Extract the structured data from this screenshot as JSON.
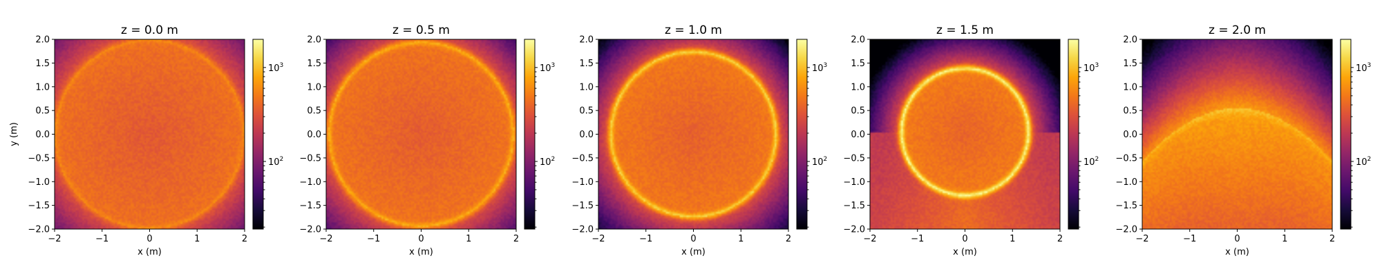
{
  "chart_data": [
    {
      "type": "heatmap",
      "title": "z = 0.0 m",
      "xlabel": "x (m)",
      "ylabel": "y (m)",
      "xlim": [
        -2,
        2
      ],
      "ylim": [
        -2,
        2
      ],
      "xticks": [
        -2,
        -1,
        0,
        1,
        2
      ],
      "yticks": [
        -2.0,
        -1.5,
        -1.0,
        -0.5,
        0.0,
        0.5,
        1.0,
        1.5,
        2.0
      ],
      "colormap": "inferno",
      "colorbar_scale": "log",
      "colorbar_ticks": [
        {
          "base": "10",
          "exp": "2",
          "value": 100
        },
        {
          "base": "10",
          "exp": "3",
          "value": 1000
        }
      ],
      "pattern": {
        "cx": 0.0,
        "cy": 0.0,
        "r": 2.0
      }
    },
    {
      "type": "heatmap",
      "title": "z = 0.5 m",
      "xlabel": "x (m)",
      "ylabel": "",
      "xlim": [
        -2,
        2
      ],
      "ylim": [
        -2,
        2
      ],
      "xticks": [
        -2,
        -1,
        0,
        1,
        2
      ],
      "yticks": [
        -2.0,
        -1.5,
        -1.0,
        -0.5,
        0.0,
        0.5,
        1.0,
        1.5,
        2.0
      ],
      "colormap": "inferno",
      "colorbar_scale": "log",
      "colorbar_ticks": [
        {
          "base": "10",
          "exp": "2",
          "value": 100
        },
        {
          "base": "10",
          "exp": "3",
          "value": 1000
        }
      ],
      "pattern": {
        "cx": 0.0,
        "cy": 0.0,
        "r": 1.95
      }
    },
    {
      "type": "heatmap",
      "title": "z = 1.0 m",
      "xlabel": "x (m)",
      "ylabel": "",
      "xlim": [
        -2,
        2
      ],
      "ylim": [
        -2,
        2
      ],
      "xticks": [
        -2,
        -1,
        0,
        1,
        2
      ],
      "yticks": [
        -2.0,
        -1.5,
        -1.0,
        -0.5,
        0.0,
        0.5,
        1.0,
        1.5,
        2.0
      ],
      "colormap": "inferno",
      "colorbar_scale": "log",
      "colorbar_ticks": [
        {
          "base": "10",
          "exp": "2",
          "value": 100
        },
        {
          "base": "10",
          "exp": "3",
          "value": 1000
        }
      ],
      "pattern": {
        "cx": 0.0,
        "cy": 0.0,
        "r": 1.75
      }
    },
    {
      "type": "heatmap",
      "title": "z = 1.5 m",
      "xlabel": "x (m)",
      "ylabel": "",
      "xlim": [
        -2,
        2
      ],
      "ylim": [
        -2,
        2
      ],
      "xticks": [
        -2,
        -1,
        0,
        1,
        2
      ],
      "yticks": [
        -2.0,
        -1.5,
        -1.0,
        -0.5,
        0.0,
        0.5,
        1.0,
        1.5,
        2.0
      ],
      "colormap": "inferno",
      "colorbar_scale": "log",
      "colorbar_ticks": [
        {
          "base": "10",
          "exp": "2",
          "value": 100
        },
        {
          "base": "10",
          "exp": "3",
          "value": 1000
        }
      ],
      "pattern": {
        "cx": 0.0,
        "cy": 0.05,
        "r": 1.35
      }
    },
    {
      "type": "heatmap",
      "title": "z = 2.0 m",
      "xlabel": "x (m)",
      "ylabel": "",
      "xlim": [
        -2,
        2
      ],
      "ylim": [
        -2,
        2
      ],
      "xticks": [
        -2,
        -1,
        0,
        1,
        2
      ],
      "yticks": [
        -2.0,
        -1.5,
        -1.0,
        -0.5,
        0.0,
        0.5,
        1.0,
        1.5,
        2.0
      ],
      "colormap": "inferno",
      "colorbar_scale": "log",
      "colorbar_ticks": [
        {
          "base": "10",
          "exp": "2",
          "value": 100
        },
        {
          "base": "10",
          "exp": "3",
          "value": 1000
        }
      ],
      "pattern": {
        "cx": 0.0,
        "cy": 0.55,
        "r": 0.0
      }
    }
  ]
}
